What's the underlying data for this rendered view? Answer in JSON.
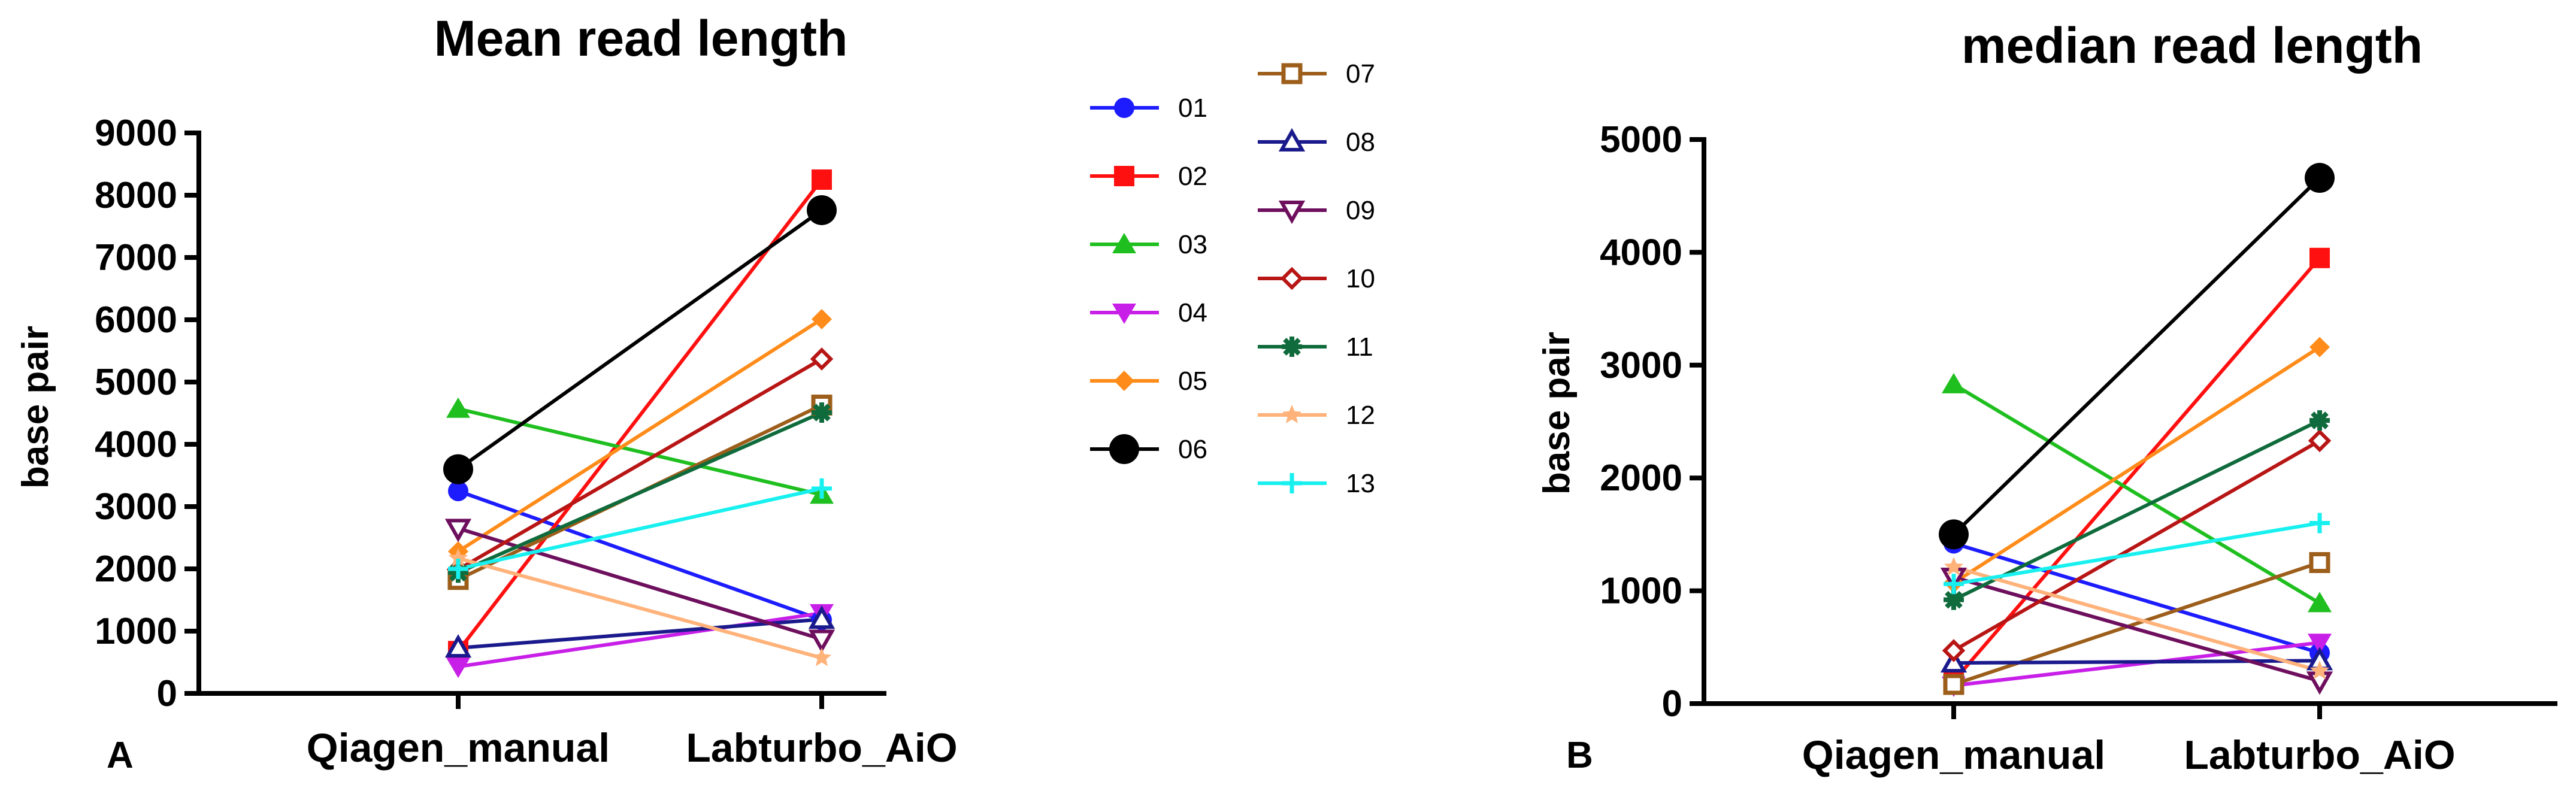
{
  "chart_data": [
    {
      "type": "line",
      "panel_label": "A",
      "title": "Mean read length",
      "xlabel": "",
      "ylabel": "base pair",
      "categories": [
        "Qiagen_manual",
        "Labturbo_AiO"
      ],
      "ylim": [
        0,
        9000
      ],
      "yticks": [
        0,
        1000,
        2000,
        3000,
        4000,
        5000,
        6000,
        7000,
        8000,
        9000
      ],
      "grid": false,
      "series": [
        {
          "name": "01",
          "values": [
            3250,
            1180
          ]
        },
        {
          "name": "02",
          "values": [
            680,
            8250
          ]
        },
        {
          "name": "03",
          "values": [
            4570,
            3190
          ]
        },
        {
          "name": "04",
          "values": [
            430,
            1290
          ]
        },
        {
          "name": "05",
          "values": [
            2280,
            6010
          ]
        },
        {
          "name": "06",
          "values": [
            3600,
            7760
          ]
        },
        {
          "name": "07",
          "values": [
            1830,
            4630
          ]
        },
        {
          "name": "08",
          "values": [
            730,
            1190
          ]
        },
        {
          "name": "09",
          "values": [
            2650,
            870
          ]
        },
        {
          "name": "10",
          "values": [
            1990,
            5370
          ]
        },
        {
          "name": "11",
          "values": [
            1940,
            4510
          ]
        },
        {
          "name": "12",
          "values": [
            2170,
            570
          ]
        },
        {
          "name": "13",
          "values": [
            2000,
            3290
          ]
        }
      ]
    },
    {
      "type": "line",
      "panel_label": "B",
      "title": "median read length",
      "xlabel": "",
      "ylabel": "base pair",
      "categories": [
        "Qiagen_manual",
        "Labturbo_AiO"
      ],
      "ylim": [
        0,
        5000
      ],
      "yticks": [
        0,
        1000,
        2000,
        3000,
        4000,
        5000
      ],
      "grid": false,
      "series": [
        {
          "name": "01",
          "values": [
            1420,
            450
          ]
        },
        {
          "name": "02",
          "values": [
            200,
            3950
          ]
        },
        {
          "name": "03",
          "values": [
            2830,
            890
          ]
        },
        {
          "name": "04",
          "values": [
            160,
            540
          ]
        },
        {
          "name": "05",
          "values": [
            1070,
            3160
          ]
        },
        {
          "name": "06",
          "values": [
            1500,
            4660
          ]
        },
        {
          "name": "07",
          "values": [
            170,
            1250
          ]
        },
        {
          "name": "08",
          "values": [
            360,
            380
          ]
        },
        {
          "name": "09",
          "values": [
            1120,
            200
          ]
        },
        {
          "name": "10",
          "values": [
            470,
            2330
          ]
        },
        {
          "name": "11",
          "values": [
            920,
            2510
          ]
        },
        {
          "name": "12",
          "values": [
            1210,
            290
          ]
        },
        {
          "name": "13",
          "values": [
            1060,
            1600
          ]
        }
      ]
    }
  ],
  "legend": {
    "placement": "between-panels",
    "items": [
      {
        "name": "01",
        "color": "#1c1cff",
        "marker": "circle-filled"
      },
      {
        "name": "02",
        "color": "#ff1010",
        "marker": "square-filled"
      },
      {
        "name": "03",
        "color": "#1fbf1f",
        "marker": "triangle-up-filled"
      },
      {
        "name": "04",
        "color": "#c81fe8",
        "marker": "triangle-down-filled"
      },
      {
        "name": "05",
        "color": "#ff8c1a",
        "marker": "diamond-filled"
      },
      {
        "name": "06",
        "color": "#000000",
        "marker": "circle-filled-large"
      },
      {
        "name": "07",
        "color": "#9c5e1a",
        "marker": "square-open"
      },
      {
        "name": "08",
        "color": "#1a1a8c",
        "marker": "triangle-up-open"
      },
      {
        "name": "09",
        "color": "#6e0f5e",
        "marker": "triangle-down-open"
      },
      {
        "name": "10",
        "color": "#b81515",
        "marker": "diamond-open"
      },
      {
        "name": "11",
        "color": "#0f6b3c",
        "marker": "star-filled"
      },
      {
        "name": "12",
        "color": "#ffb27a",
        "marker": "star-thin"
      },
      {
        "name": "13",
        "color": "#18f0f0",
        "marker": "plus"
      }
    ]
  }
}
